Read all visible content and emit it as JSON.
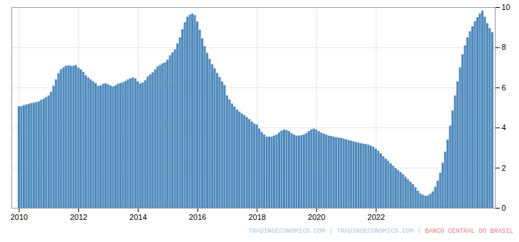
{
  "chart_data": {
    "type": "bar",
    "x": [
      2010,
      2010.083333,
      2010.166667,
      2010.25,
      2010.333333,
      2010.416667,
      2010.5,
      2010.583333,
      2010.666667,
      2010.75,
      2010.833333,
      2010.916667,
      2011,
      2011.083333,
      2011.166667,
      2011.25,
      2011.333333,
      2011.416667,
      2011.5,
      2011.583333,
      2011.666667,
      2011.75,
      2011.833333,
      2011.916667,
      2012,
      2012.083333,
      2012.166667,
      2012.25,
      2012.333333,
      2012.416667,
      2012.5,
      2012.583333,
      2012.666667,
      2012.75,
      2012.833333,
      2012.916667,
      2013,
      2013.083333,
      2013.166667,
      2013.25,
      2013.333333,
      2013.416667,
      2013.5,
      2013.583333,
      2013.666667,
      2013.75,
      2013.833333,
      2013.916667,
      2014,
      2014.083333,
      2014.166667,
      2014.25,
      2014.333333,
      2014.416667,
      2014.5,
      2014.583333,
      2014.666667,
      2014.75,
      2014.833333,
      2014.916667,
      2015,
      2015.083333,
      2015.166667,
      2015.25,
      2015.333333,
      2015.416667,
      2015.5,
      2015.583333,
      2015.666667,
      2015.75,
      2015.833333,
      2015.916667,
      2016,
      2016.083333,
      2016.166667,
      2016.25,
      2016.333333,
      2016.416667,
      2016.5,
      2016.583333,
      2016.666667,
      2016.75,
      2016.833333,
      2016.916667,
      2017,
      2017.083333,
      2017.166667,
      2017.25,
      2017.333333,
      2017.416667,
      2017.5,
      2017.583333,
      2017.666667,
      2017.75,
      2017.833333,
      2017.916667,
      2018,
      2018.083333,
      2018.166667,
      2018.25,
      2018.333333,
      2018.416667,
      2018.5,
      2018.583333,
      2018.666667,
      2018.75,
      2018.833333,
      2018.916667,
      2019,
      2019.083333,
      2019.166667,
      2019.25,
      2019.333333,
      2019.416667,
      2019.5,
      2019.583333,
      2019.666667,
      2019.75,
      2019.833333,
      2019.916667,
      2020,
      2020.083333,
      2020.166667,
      2020.25,
      2020.333333,
      2020.416667,
      2020.5,
      2020.583333,
      2020.666667,
      2020.75,
      2020.833333,
      2020.916667,
      2021,
      2021.083333,
      2021.166667,
      2021.25,
      2021.333333,
      2021.416667,
      2021.5,
      2021.583333,
      2021.666667,
      2021.75,
      2021.833333,
      2021.916667,
      2022,
      2022.083333,
      2022.166667,
      2022.25,
      2022.333333,
      2022.416667,
      2022.5,
      2022.583333,
      2022.666667,
      2022.75,
      2022.833333,
      2022.916667,
      2023,
      2023.083333,
      2023.166667,
      2023.25,
      2023.333333,
      2023.416667,
      2023.5,
      2023.583333,
      2023.666667,
      2023.75,
      2023.833333,
      2023.916667,
      2024,
      2024.083333,
      2024.166667,
      2024.25,
      2024.333333,
      2024.416667,
      2024.5,
      2024.583333,
      2024.666667,
      2024.75,
      2024.833333,
      2024.916667,
      2025,
      2025.083333,
      2025.166667,
      2025.25,
      2025.333333,
      2025.416667,
      2025.5,
      2025.583333,
      2025.666667,
      2025.75,
      2025.833333,
      2025.916667
    ],
    "values": [
      5.06,
      5.06,
      5.12,
      5.15,
      5.18,
      5.22,
      5.24,
      5.27,
      5.3,
      5.38,
      5.44,
      5.52,
      5.6,
      5.78,
      6.08,
      6.4,
      6.71,
      6.9,
      7.0,
      7.08,
      7.1,
      7.08,
      7.08,
      7.11,
      6.99,
      6.9,
      6.78,
      6.6,
      6.5,
      6.4,
      6.3,
      6.21,
      6.08,
      6.1,
      6.18,
      6.2,
      6.16,
      6.09,
      6.05,
      6.1,
      6.18,
      6.22,
      6.26,
      6.32,
      6.4,
      6.45,
      6.5,
      6.45,
      6.3,
      6.2,
      6.25,
      6.35,
      6.55,
      6.65,
      6.75,
      6.9,
      7.05,
      7.12,
      7.2,
      7.25,
      7.38,
      7.6,
      7.75,
      7.9,
      8.2,
      8.5,
      8.9,
      9.25,
      9.52,
      9.62,
      9.68,
      9.6,
      9.28,
      8.88,
      8.45,
      8.05,
      7.72,
      7.42,
      7.15,
      6.95,
      6.72,
      6.52,
      6.3,
      6.12,
      5.6,
      5.4,
      5.2,
      5.05,
      4.9,
      4.8,
      4.7,
      4.62,
      4.52,
      4.42,
      4.3,
      4.2,
      4.15,
      3.95,
      3.78,
      3.65,
      3.55,
      3.55,
      3.55,
      3.6,
      3.65,
      3.75,
      3.85,
      3.9,
      3.88,
      3.82,
      3.72,
      3.65,
      3.6,
      3.6,
      3.62,
      3.65,
      3.72,
      3.82,
      3.9,
      3.95,
      3.9,
      3.82,
      3.75,
      3.7,
      3.65,
      3.6,
      3.58,
      3.55,
      3.52,
      3.5,
      3.48,
      3.45,
      3.42,
      3.38,
      3.35,
      3.32,
      3.28,
      3.25,
      3.22,
      3.2,
      3.18,
      3.15,
      3.1,
      3.05,
      2.95,
      2.85,
      2.72,
      2.58,
      2.45,
      2.35,
      2.22,
      2.1,
      1.98,
      1.88,
      1.78,
      1.68,
      1.55,
      1.42,
      1.3,
      1.18,
      1.02,
      0.85,
      0.72,
      0.65,
      0.6,
      0.62,
      0.7,
      0.82,
      1.05,
      1.35,
      1.75,
      2.25,
      2.8,
      3.4,
      4.1,
      4.85,
      5.6,
      6.3,
      7.0,
      7.65,
      8.1,
      8.5,
      8.8,
      9.05,
      9.3,
      9.5,
      9.68,
      9.82,
      9.52,
      9.2,
      8.95,
      8.75
    ],
    "color": "#4d88bb",
    "xlim": [
      2009.75,
      2026.003333
    ],
    "xticks": [
      2010,
      2012,
      2014,
      2016,
      2018,
      2020,
      2022
    ],
    "ylim": [
      0,
      10
    ],
    "yticks": [
      0,
      2,
      4,
      6,
      8,
      10
    ],
    "grid": true,
    "annotations": [
      {
        "text": "TRADINGECONOMICS.COM | ",
        "color": "#aac4e0"
      },
      {
        "text": "TRADINGECONOMICS.COM | ",
        "color": "#aac4e0"
      },
      {
        "text": "BANCO CENTRAL DO BRASIL",
        "color": "#e08080"
      }
    ]
  }
}
